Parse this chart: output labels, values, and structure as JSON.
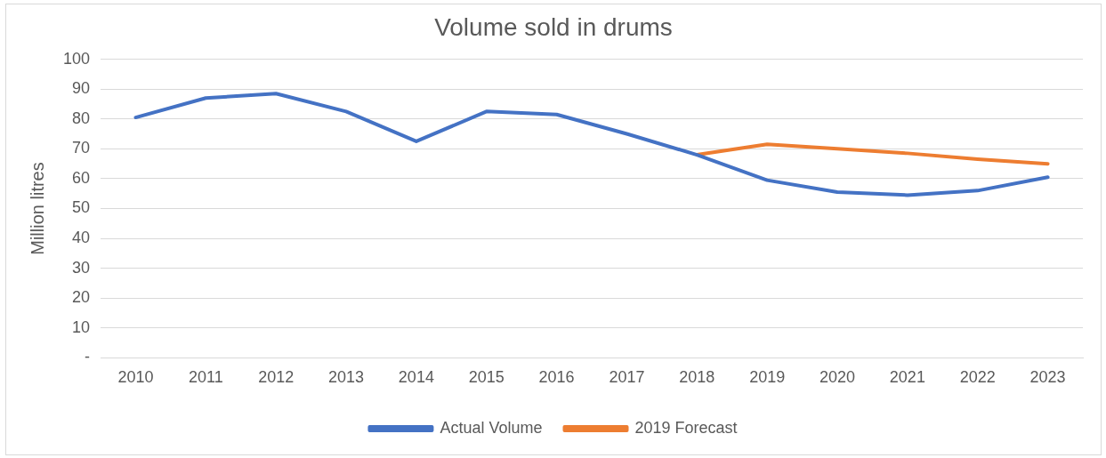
{
  "chart_data": {
    "type": "line",
    "title": "Volume sold in drums",
    "ylabel": "Million litres",
    "categories": [
      "2010",
      "2011",
      "2012",
      "2013",
      "2014",
      "2015",
      "2016",
      "2017",
      "2018",
      "2019",
      "2020",
      "2021",
      "2022",
      "2023"
    ],
    "series": [
      {
        "name": "Actual Volume",
        "color": "#4472c4",
        "values": [
          80.5,
          87,
          88.5,
          82.5,
          72.5,
          82.5,
          81.5,
          75,
          68,
          59.5,
          55.5,
          54.5,
          56,
          60.5
        ]
      },
      {
        "name": "2019 Forecast",
        "color": "#ed7d31",
        "values": [
          null,
          null,
          null,
          null,
          null,
          null,
          null,
          null,
          68,
          71.5,
          70,
          68.5,
          66.5,
          65
        ]
      }
    ],
    "ylim": [
      0,
      100
    ],
    "yticks": [
      {
        "value": 0,
        "label": "-"
      },
      10,
      20,
      30,
      40,
      50,
      60,
      70,
      80,
      90,
      100
    ],
    "grid": "y",
    "legend": "bottom",
    "marker": "none",
    "line_style": "solid"
  }
}
